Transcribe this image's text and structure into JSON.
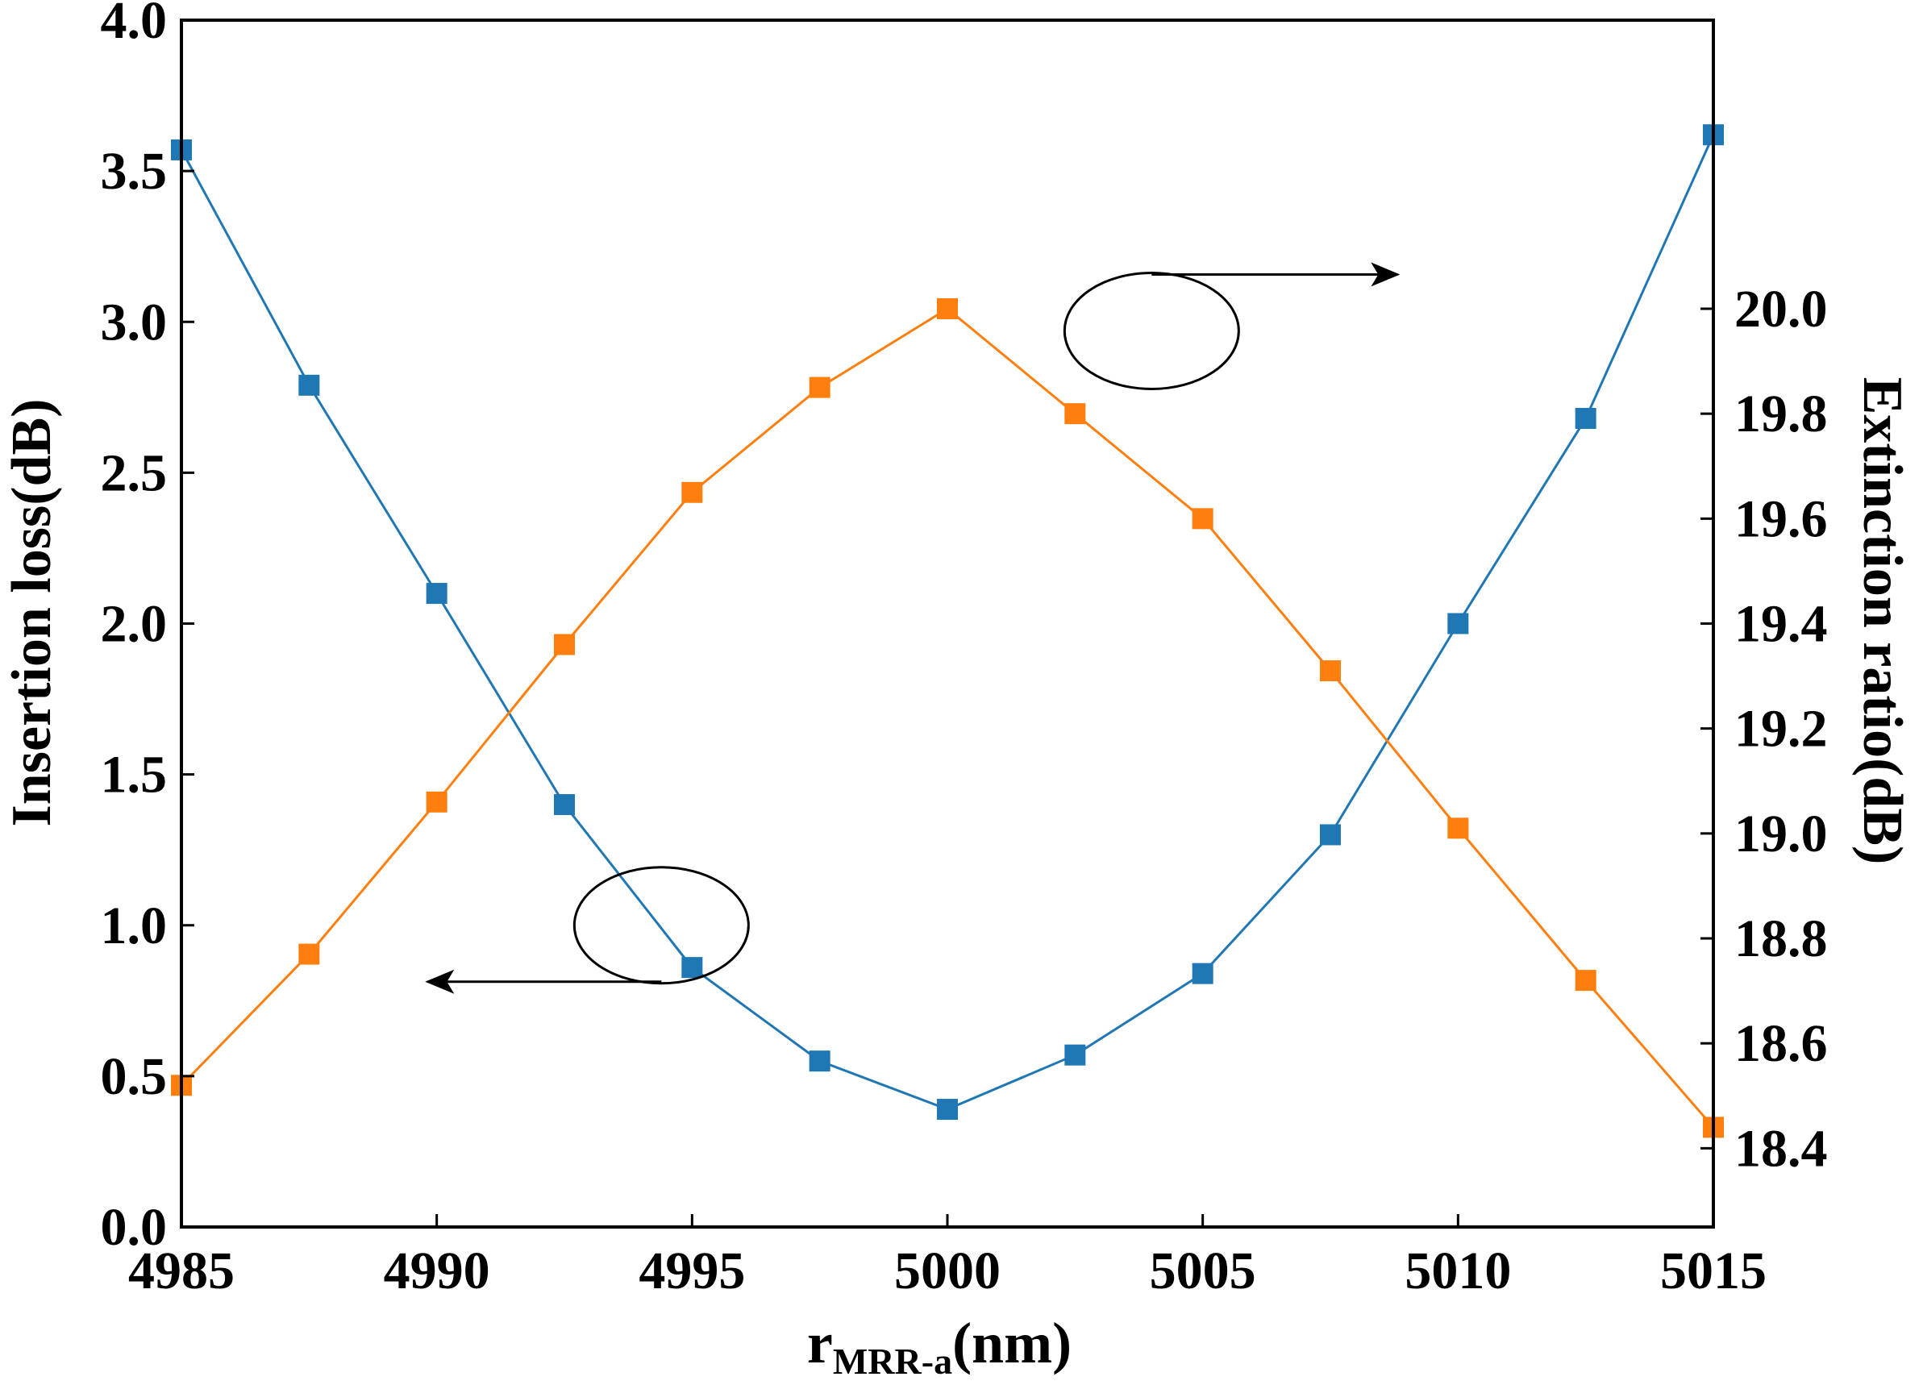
{
  "chart_data": {
    "type": "line",
    "xlabel": {
      "main": "r",
      "subscript": "MRR-a",
      "suffix": "(nm)"
    },
    "ylabel_left": "Insertion loss(dB)",
    "ylabel_right": "Extinction ratio(dB)",
    "xlim": [
      4985,
      5015
    ],
    "ylim_left": [
      0,
      4.0
    ],
    "ylim_right": [
      18.25,
      20.55
    ],
    "x_ticks": [
      4985,
      4990,
      4995,
      5000,
      5005,
      5010,
      5015
    ],
    "x_tick_labels": [
      "4985",
      "4990",
      "4995",
      "5000",
      "5005",
      "5010",
      "5015"
    ],
    "y_left_ticks": [
      0.0,
      0.5,
      1.0,
      1.5,
      2.0,
      2.5,
      3.0,
      3.5,
      4.0
    ],
    "y_left_tick_labels": [
      "0.0",
      "0.5",
      "1.0",
      "1.5",
      "2.0",
      "2.5",
      "3.0",
      "3.5",
      "4.0"
    ],
    "y_right_ticks": [
      18.4,
      18.6,
      18.8,
      19.0,
      19.2,
      19.4,
      19.6,
      19.8,
      20.0
    ],
    "y_right_tick_labels": [
      "18.4",
      "18.6",
      "18.8",
      "19.0",
      "19.2",
      "19.4",
      "19.6",
      "19.8",
      "20.0"
    ],
    "grid": false,
    "legend": "none",
    "x": [
      4985,
      4987.5,
      4990,
      4992.5,
      4995,
      4997.5,
      5000,
      5002.5,
      5005,
      5007.5,
      5010,
      5012.5,
      5015
    ],
    "series": [
      {
        "axis": "left",
        "color": "#1f77b4",
        "values": [
          3.57,
          2.79,
          2.1,
          1.4,
          0.86,
          0.55,
          0.39,
          0.57,
          0.84,
          1.3,
          2.0,
          2.68,
          3.62
        ]
      },
      {
        "axis": "right",
        "color": "#ff7f0e",
        "values": [
          18.52,
          18.77,
          19.06,
          19.36,
          19.65,
          19.85,
          20.0,
          19.8,
          19.6,
          19.31,
          19.01,
          18.72,
          18.44
        ]
      }
    ],
    "annotations": [
      {
        "type": "ellipse-with-arrow",
        "marks_series_axis": "right",
        "arrow_direction": "right",
        "center_x": 5004,
        "center_left_y": 2.97
      },
      {
        "type": "ellipse-with-arrow",
        "marks_series_axis": "left",
        "arrow_direction": "left",
        "center_x": 4994.4,
        "center_left_y": 1.0
      }
    ]
  }
}
